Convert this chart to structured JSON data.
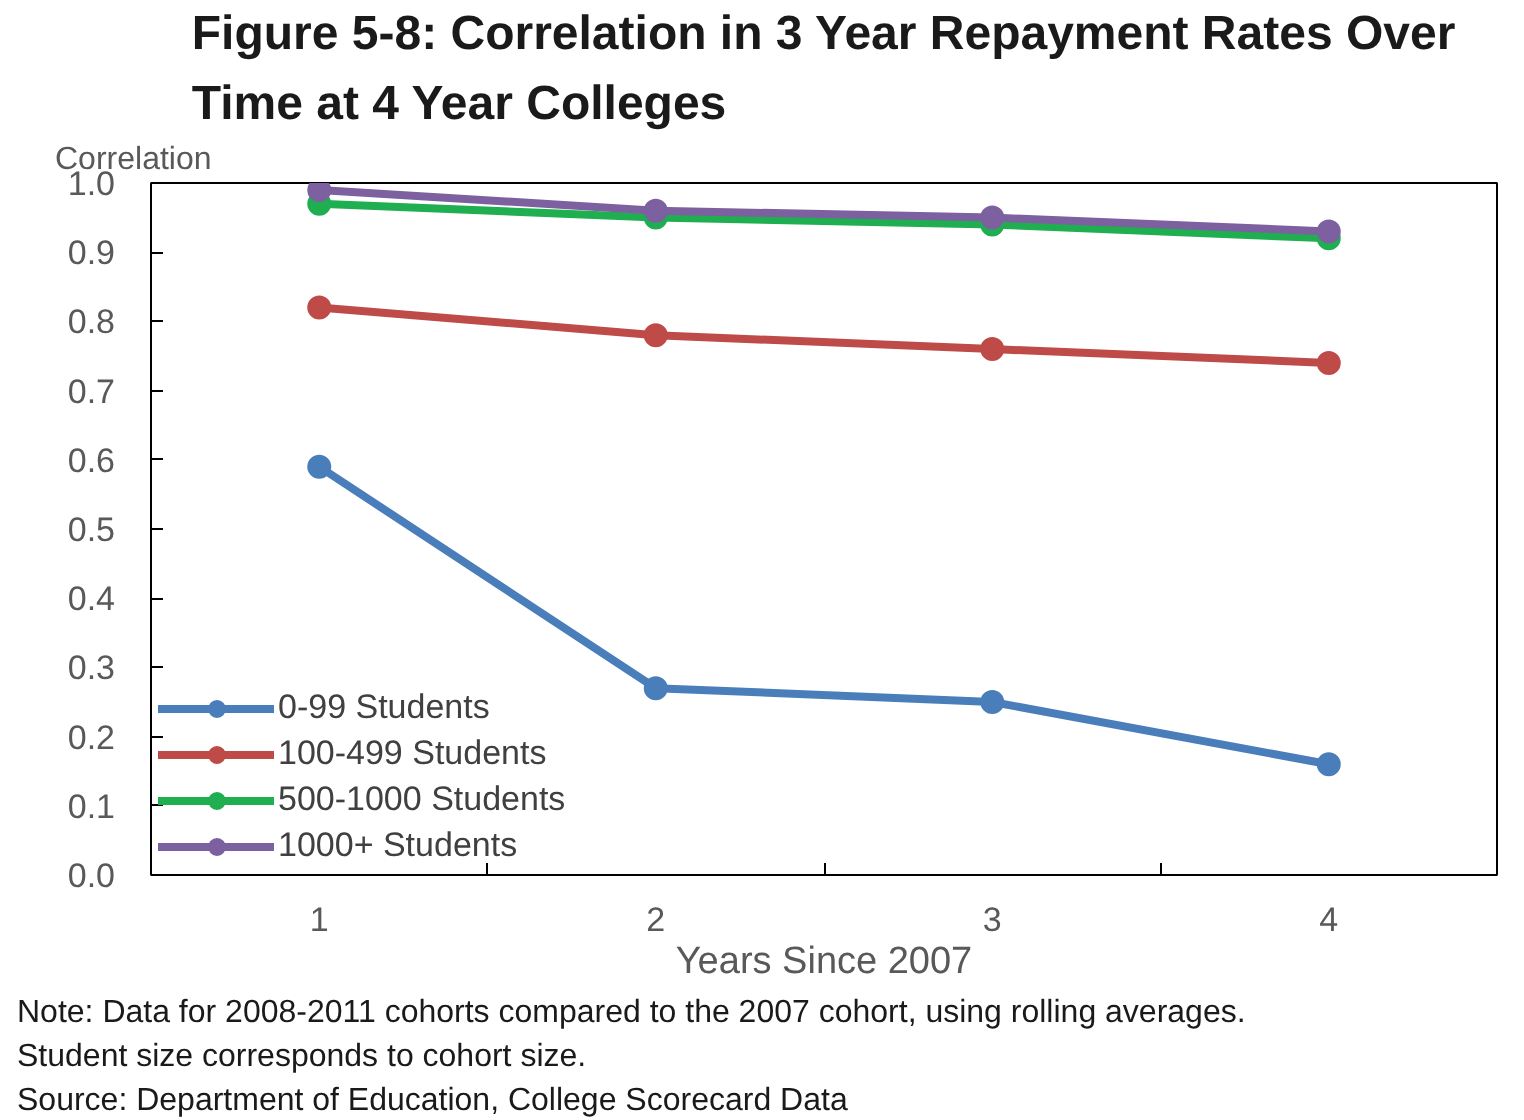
{
  "chart_data": {
    "type": "line",
    "title": "Figure 5-8: Correlation in 3 Year Repayment Rates Over Time at 4 Year Colleges",
    "ylabel": "Correlation",
    "xlabel": "Years Since 2007",
    "categories": [
      "1",
      "2",
      "3",
      "4"
    ],
    "series": [
      {
        "name": "0-99 Students",
        "color": "#4a7ebb",
        "values": [
          0.59,
          0.27,
          0.25,
          0.16
        ]
      },
      {
        "name": "100-499 Students",
        "color": "#be4b48",
        "values": [
          0.82,
          0.78,
          0.76,
          0.74
        ]
      },
      {
        "name": "500-1000 Students",
        "color": "#1fae50",
        "values": [
          0.97,
          0.95,
          0.94,
          0.92
        ]
      },
      {
        "name": "1000+ Students",
        "color": "#7d60a0",
        "values": [
          0.99,
          0.96,
          0.95,
          0.93
        ]
      }
    ],
    "ylim": [
      0,
      1
    ],
    "yticks": [
      {
        "value": 0,
        "label": "0.0"
      },
      {
        "value": 0.1,
        "label": "0.1"
      },
      {
        "value": 0.2,
        "label": "0.2"
      },
      {
        "value": 0.3,
        "label": "0.3"
      },
      {
        "value": 0.4,
        "label": "0.4"
      },
      {
        "value": 0.5,
        "label": "0.5"
      },
      {
        "value": 0.6,
        "label": "0.6"
      },
      {
        "value": 0.7,
        "label": "0.7"
      },
      {
        "value": 0.8,
        "label": "0.8"
      },
      {
        "value": 0.9,
        "label": "0.9"
      },
      {
        "value": 1,
        "label": "1.0"
      }
    ],
    "legend": "bottom left",
    "marker": "circle",
    "line_style": "solid",
    "grid": false,
    "annotations": [
      "Note: Data for 2008-2011 cohorts compared to the 2007 cohort, using rolling averages. Student size corresponds to cohort size.",
      "Source: Department of Education, College Scorecard Data"
    ]
  }
}
